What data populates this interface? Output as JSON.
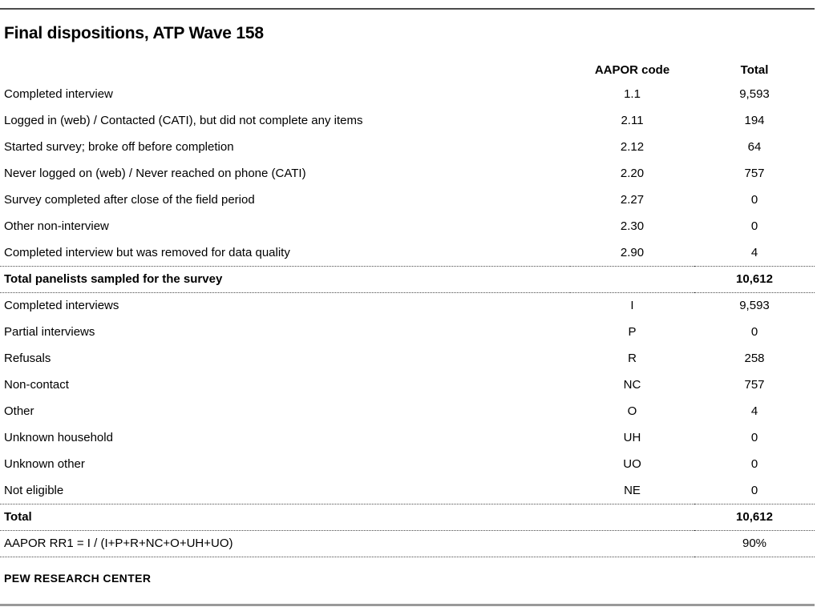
{
  "title": "Final dispositions, ATP Wave 158",
  "footer": "PEW RESEARCH CENTER",
  "colors": {
    "top_rule": "#4c4c4c",
    "bottom_rule": "#999999",
    "dotted_separator": "#4a4a4a",
    "text": "#000000"
  },
  "table": {
    "columns": {
      "label": "",
      "code": "AAPOR code",
      "total": "Total"
    },
    "rows": [
      {
        "label": "Completed interview",
        "code": "1.1",
        "total": "9,593"
      },
      {
        "label": "Logged in (web) / Contacted (CATI), but did not complete any items",
        "code": "2.11",
        "total": "194"
      },
      {
        "label": "Started survey; broke off before completion",
        "code": "2.12",
        "total": "64"
      },
      {
        "label": "Never logged on (web) / Never reached on phone (CATI)",
        "code": "2.20",
        "total": "757"
      },
      {
        "label": "Survey completed after close of the field period",
        "code": "2.27",
        "total": "0"
      },
      {
        "label": "Other non-interview",
        "code": "2.30",
        "total": "0"
      },
      {
        "label": "Completed interview but was removed for data quality",
        "code": "2.90",
        "total": "4"
      },
      {
        "label": "Total panelists sampled for the survey",
        "code": "",
        "total": "10,612"
      },
      {
        "label": "Completed interviews",
        "code": "I",
        "total": "9,593"
      },
      {
        "label": "Partial interviews",
        "code": "P",
        "total": "0"
      },
      {
        "label": "Refusals",
        "code": "R",
        "total": "258"
      },
      {
        "label": "Non-contact",
        "code": "NC",
        "total": "757"
      },
      {
        "label": "Other",
        "code": "O",
        "total": "4"
      },
      {
        "label": "Unknown household",
        "code": "UH",
        "total": "0"
      },
      {
        "label": "Unknown other",
        "code": "UO",
        "total": "0"
      },
      {
        "label": "Not eligible",
        "code": "NE",
        "total": "0"
      },
      {
        "label": "Total",
        "code": "",
        "total": "10,612"
      },
      {
        "label": "AAPOR RR1 = I / (I+P+R+NC+O+UH+UO)",
        "code": "",
        "total": "90%"
      }
    ]
  }
}
